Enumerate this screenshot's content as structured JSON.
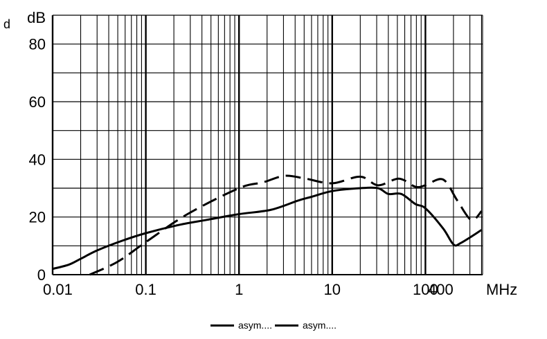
{
  "chart_data": {
    "type": "line",
    "title": "",
    "xlabel": "MHz",
    "ylabel": "dB",
    "corner_label": "d",
    "xscale": "log",
    "xlim": [
      0.01,
      400
    ],
    "ylim": [
      0,
      90
    ],
    "grid": true,
    "x_ticks": [
      {
        "value": 0.01,
        "label": "0.01"
      },
      {
        "value": 0.1,
        "label": "0.1"
      },
      {
        "value": 1,
        "label": "1"
      },
      {
        "value": 10,
        "label": "10"
      },
      {
        "value": 100,
        "label": "100"
      },
      {
        "value": 400,
        "label": "400"
      }
    ],
    "x_unit_label": "MHz",
    "y_ticks": [
      {
        "value": 0,
        "label": "0"
      },
      {
        "value": 20,
        "label": "20"
      },
      {
        "value": 40,
        "label": "40"
      },
      {
        "value": 60,
        "label": "60"
      },
      {
        "value": 80,
        "label": "80"
      }
    ],
    "y_unit_label": "dB",
    "legend_position": "bottom",
    "series": [
      {
        "name": "asym....",
        "style": "solid",
        "points": [
          [
            0.01,
            2
          ],
          [
            0.015,
            3.5
          ],
          [
            0.02,
            5.5
          ],
          [
            0.03,
            8.4
          ],
          [
            0.055,
            11.7
          ],
          [
            0.1,
            14.4
          ],
          [
            0.23,
            17.3
          ],
          [
            0.45,
            19
          ],
          [
            1,
            21
          ],
          [
            2.2,
            22.5
          ],
          [
            4.3,
            25.7
          ],
          [
            6,
            27
          ],
          [
            10,
            29
          ],
          [
            20,
            30
          ],
          [
            31,
            30
          ],
          [
            40,
            28
          ],
          [
            55,
            28
          ],
          [
            78,
            24.5
          ],
          [
            100,
            23
          ],
          [
            155,
            16
          ],
          [
            200,
            10.5
          ],
          [
            240,
            11
          ],
          [
            400,
            15.5
          ]
        ]
      },
      {
        "name": "asym....",
        "style": "dashed",
        "points": [
          [
            0.025,
            0
          ],
          [
            0.05,
            4.5
          ],
          [
            0.1,
            11.3
          ],
          [
            0.28,
            21
          ],
          [
            1,
            30
          ],
          [
            1.8,
            32
          ],
          [
            3.1,
            34.3
          ],
          [
            5.2,
            33.3
          ],
          [
            10,
            31.7
          ],
          [
            20,
            34
          ],
          [
            31,
            31
          ],
          [
            52,
            33.3
          ],
          [
            78,
            30.5
          ],
          [
            100,
            31
          ],
          [
            155,
            33
          ],
          [
            220,
            25.7
          ],
          [
            310,
            19
          ],
          [
            400,
            22
          ]
        ]
      }
    ]
  },
  "legend": {
    "items": [
      {
        "label": "asym....",
        "style": "solid"
      },
      {
        "label": "asym....",
        "style": "solid"
      }
    ]
  }
}
